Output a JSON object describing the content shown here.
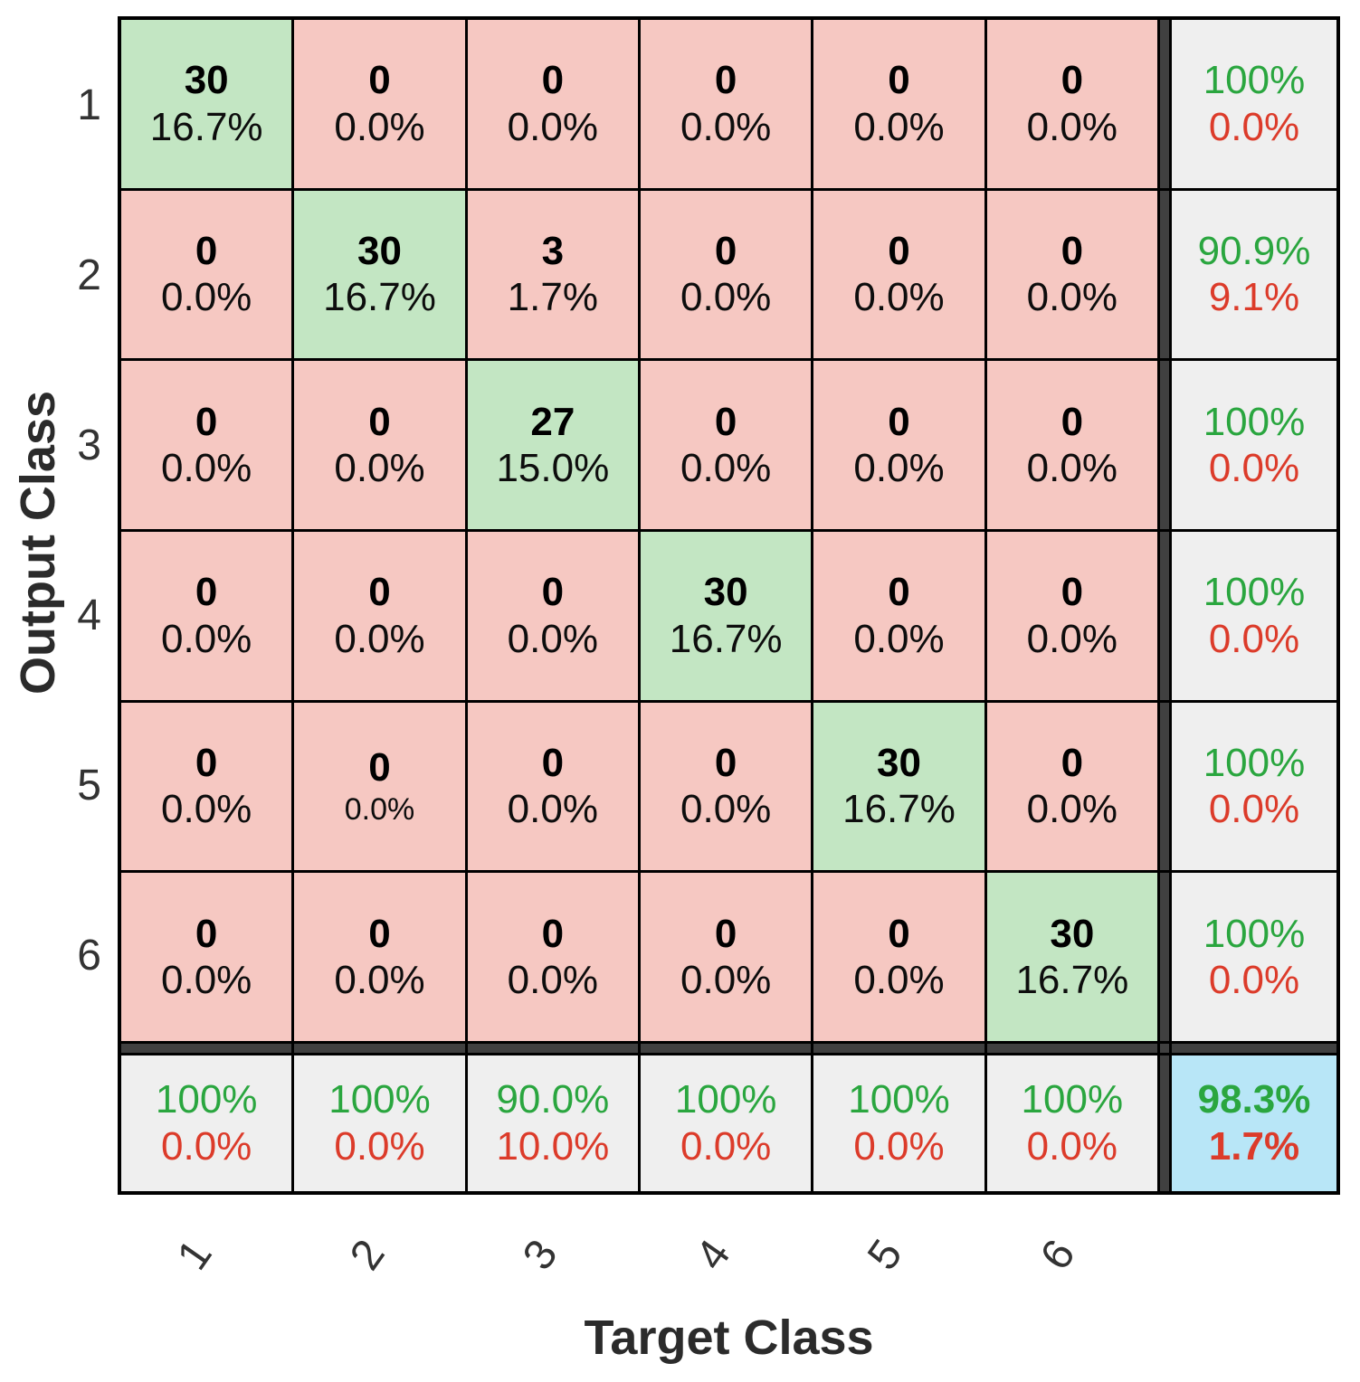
{
  "colors": {
    "diagonal_cell": "#c3e6c3",
    "off_diagonal_cell": "#f6c8c2",
    "summary_cell_bg": "#efefef",
    "total_cell_bg": "#b8e6f7",
    "good_text": "#2aa63f",
    "bad_text": "#dc3b2a",
    "separator": "#404040",
    "grid_line": "#000000"
  },
  "chart_data": {
    "type": "heatmap",
    "subtype": "confusion-matrix",
    "xlabel": "Target Class",
    "ylabel": "Output Class",
    "classes": [
      "1",
      "2",
      "3",
      "4",
      "5",
      "6"
    ],
    "matrix_counts": [
      [
        30,
        0,
        0,
        0,
        0,
        0
      ],
      [
        0,
        30,
        3,
        0,
        0,
        0
      ],
      [
        0,
        0,
        27,
        0,
        0,
        0
      ],
      [
        0,
        0,
        0,
        30,
        0,
        0
      ],
      [
        0,
        0,
        0,
        0,
        30,
        0
      ],
      [
        0,
        0,
        0,
        0,
        0,
        30
      ]
    ],
    "cells": [
      [
        {
          "count": "30",
          "pct": "16.7%"
        },
        {
          "count": "0",
          "pct": "0.0%"
        },
        {
          "count": "0",
          "pct": "0.0%"
        },
        {
          "count": "0",
          "pct": "0.0%"
        },
        {
          "count": "0",
          "pct": "0.0%"
        },
        {
          "count": "0",
          "pct": "0.0%"
        }
      ],
      [
        {
          "count": "0",
          "pct": "0.0%"
        },
        {
          "count": "30",
          "pct": "16.7%"
        },
        {
          "count": "3",
          "pct": "1.7%"
        },
        {
          "count": "0",
          "pct": "0.0%"
        },
        {
          "count": "0",
          "pct": "0.0%"
        },
        {
          "count": "0",
          "pct": "0.0%"
        }
      ],
      [
        {
          "count": "0",
          "pct": "0.0%"
        },
        {
          "count": "0",
          "pct": "0.0%"
        },
        {
          "count": "27",
          "pct": "15.0%"
        },
        {
          "count": "0",
          "pct": "0.0%"
        },
        {
          "count": "0",
          "pct": "0.0%"
        },
        {
          "count": "0",
          "pct": "0.0%"
        }
      ],
      [
        {
          "count": "0",
          "pct": "0.0%"
        },
        {
          "count": "0",
          "pct": "0.0%"
        },
        {
          "count": "0",
          "pct": "0.0%"
        },
        {
          "count": "30",
          "pct": "16.7%"
        },
        {
          "count": "0",
          "pct": "0.0%"
        },
        {
          "count": "0",
          "pct": "0.0%"
        }
      ],
      [
        {
          "count": "0",
          "pct": "0.0%"
        },
        {
          "count": "0",
          "pct": "0.0%",
          "small": true
        },
        {
          "count": "0",
          "pct": "0.0%"
        },
        {
          "count": "0",
          "pct": "0.0%"
        },
        {
          "count": "30",
          "pct": "16.7%"
        },
        {
          "count": "0",
          "pct": "0.0%"
        }
      ],
      [
        {
          "count": "0",
          "pct": "0.0%"
        },
        {
          "count": "0",
          "pct": "0.0%"
        },
        {
          "count": "0",
          "pct": "0.0%"
        },
        {
          "count": "0",
          "pct": "0.0%"
        },
        {
          "count": "0",
          "pct": "0.0%"
        },
        {
          "count": "30",
          "pct": "16.7%"
        }
      ]
    ],
    "row_summary": [
      {
        "top": "100%",
        "bottom": "0.0%"
      },
      {
        "top": "90.9%",
        "bottom": "9.1%"
      },
      {
        "top": "100%",
        "bottom": "0.0%"
      },
      {
        "top": "100%",
        "bottom": "0.0%"
      },
      {
        "top": "100%",
        "bottom": "0.0%"
      },
      {
        "top": "100%",
        "bottom": "0.0%"
      }
    ],
    "col_summary": [
      {
        "top": "100%",
        "bottom": "0.0%"
      },
      {
        "top": "100%",
        "bottom": "0.0%"
      },
      {
        "top": "90.0%",
        "bottom": "10.0%"
      },
      {
        "top": "100%",
        "bottom": "0.0%"
      },
      {
        "top": "100%",
        "bottom": "0.0%"
      },
      {
        "top": "100%",
        "bottom": "0.0%"
      }
    ],
    "total": {
      "top": "98.3%",
      "bottom": "1.7%"
    }
  }
}
